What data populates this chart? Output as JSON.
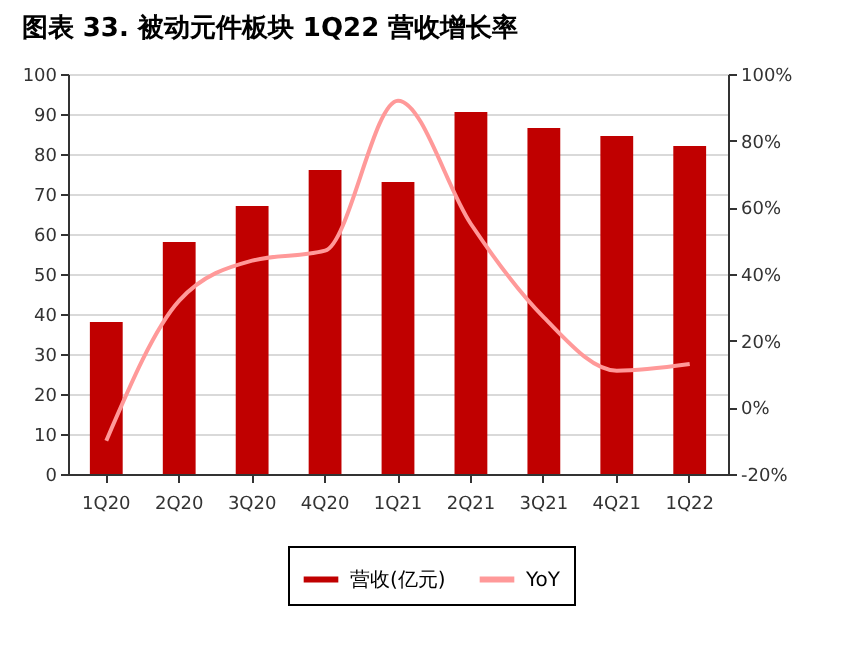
{
  "chart_data": {
    "type": "bar",
    "title": "图表 33.   被动元件板块 1Q22 营收增长率",
    "categories": [
      "1Q20",
      "2Q20",
      "3Q20",
      "4Q20",
      "1Q21",
      "2Q21",
      "3Q21",
      "4Q21",
      "1Q22"
    ],
    "series": [
      {
        "name": "营收(亿元)",
        "color": "#c00000",
        "values": [
          38,
          58,
          67,
          76,
          73,
          90.5,
          86.5,
          84.5,
          82
        ]
      },
      {
        "name": "YoY",
        "type": "line",
        "axis": "y2",
        "color": "#ff9999",
        "values": [
          -10,
          32,
          44,
          47,
          92,
          55,
          27,
          11,
          13
        ]
      }
    ],
    "ylim": [
      0,
      100
    ],
    "yticks": [
      0,
      10,
      20,
      30,
      40,
      50,
      60,
      70,
      80,
      90,
      100
    ],
    "y2lim": [
      -20,
      100
    ],
    "y2ticks": [
      {
        "value": -20,
        "label": "-20%"
      },
      {
        "value": 0,
        "label": "0%"
      },
      {
        "value": 20,
        "label": "20%"
      },
      {
        "value": 40,
        "label": "40%"
      },
      {
        "value": 60,
        "label": "60%"
      },
      {
        "value": 80,
        "label": "80%"
      },
      {
        "value": 100,
        "label": "100%"
      }
    ],
    "grid": "y",
    "legend": "bottom",
    "line_style": "solid",
    "marker": "none"
  }
}
